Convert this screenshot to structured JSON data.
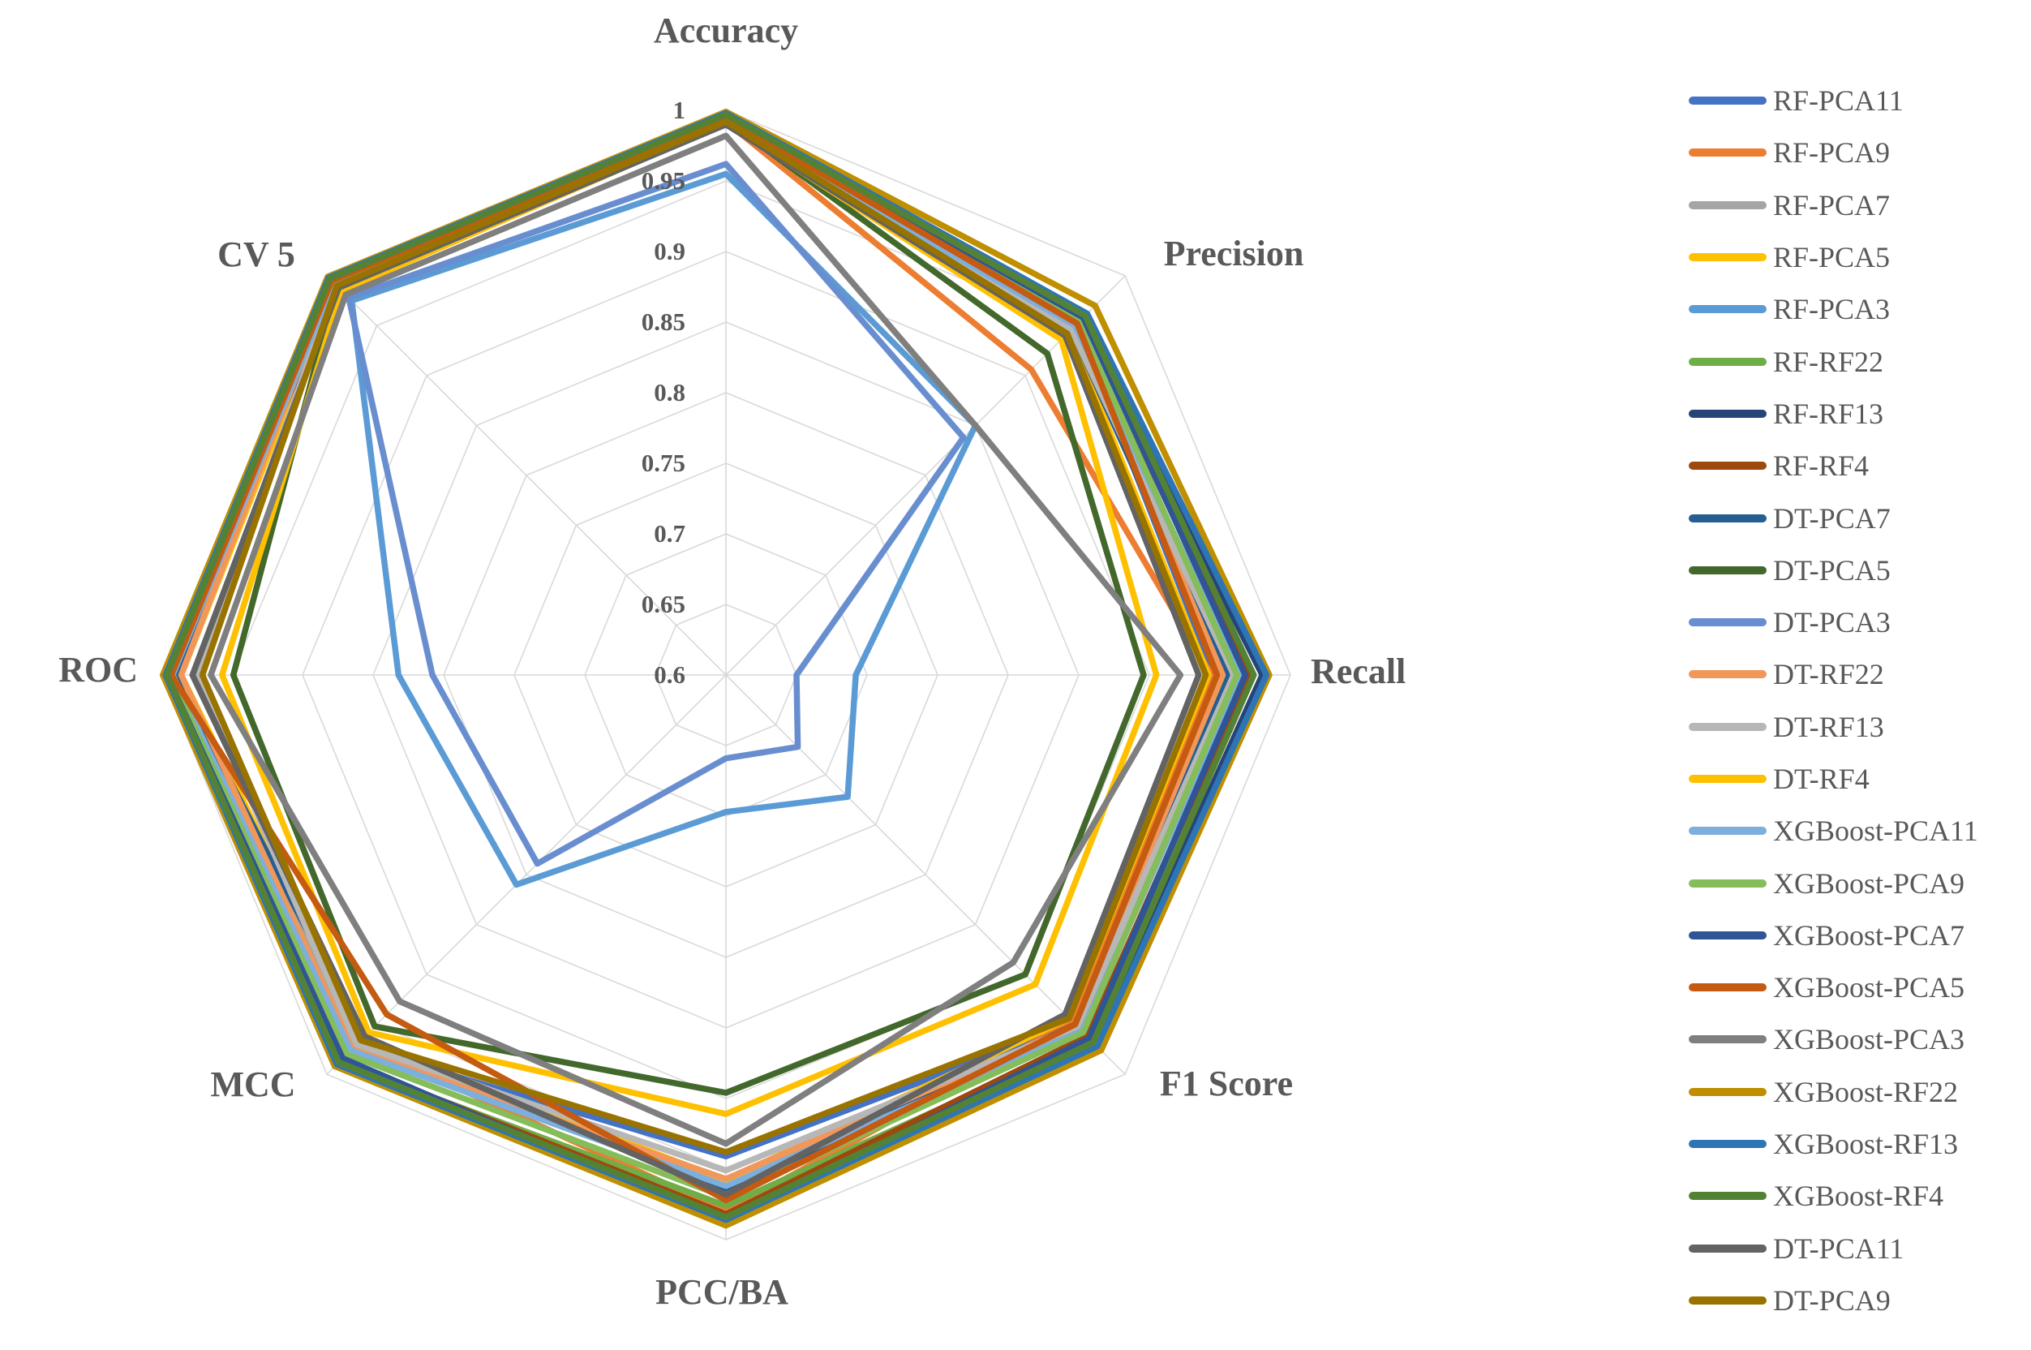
{
  "page": {
    "background_color": "#FFFFFF",
    "text_color": "#595959",
    "grid_color": "#D9D9D9"
  },
  "chart_data": {
    "type": "radar",
    "axes": [
      "Accuracy",
      "Precision",
      "Recall",
      "F1 Score",
      "PCC/BA",
      "MCC",
      "ROC",
      "CV 5"
    ],
    "radial_min": 0.6,
    "radial_max": 1.0,
    "ring_step": 0.05,
    "grid": true,
    "legend_position": "right",
    "tick_labels": [
      "1",
      "0.95",
      "0.9",
      "0.85",
      "0.8",
      "0.75",
      "0.7",
      "0.65",
      "0.6"
    ],
    "tick_values": [
      1.0,
      0.95,
      0.9,
      0.85,
      0.8,
      0.75,
      0.7,
      0.65,
      0.6
    ],
    "series": [
      {
        "name": "RF-PCA11",
        "color": "#4472C4",
        "values": [
          0.993,
          0.952,
          0.946,
          0.949,
          0.941,
          0.972,
          0.991,
          0.993
        ]
      },
      {
        "name": "RF-PCA9",
        "color": "#ED7D31",
        "values": [
          0.992,
          0.906,
          0.944,
          0.947,
          0.98,
          0.968,
          0.994,
          0.996
        ]
      },
      {
        "name": "RF-PCA7",
        "color": "#A5A5A5",
        "values": [
          0.991,
          0.948,
          0.958,
          0.953,
          0.96,
          0.97,
          0.988,
          0.992
        ]
      },
      {
        "name": "RF-PCA5",
        "color": "#FFC000",
        "values": [
          0.99,
          0.944,
          0.942,
          0.944,
          0.958,
          0.966,
          0.986,
          0.991
        ]
      },
      {
        "name": "RF-PCA3",
        "color": "#5B9BD5",
        "values": [
          0.955,
          0.85,
          0.692,
          0.722,
          0.697,
          0.81,
          0.832,
          0.975
        ]
      },
      {
        "name": "RF-RF22",
        "color": "#70AD47",
        "values": [
          0.998,
          0.96,
          0.972,
          0.966,
          0.976,
          0.988,
          0.998,
          0.999
        ]
      },
      {
        "name": "RF-RF13",
        "color": "#264478",
        "values": [
          0.997,
          0.958,
          0.98,
          0.97,
          0.985,
          0.99,
          0.997,
          0.998
        ]
      },
      {
        "name": "RF-RF4",
        "color": "#9E480E",
        "values": [
          0.996,
          0.956,
          0.97,
          0.962,
          0.982,
          0.986,
          0.996,
          0.997
        ]
      },
      {
        "name": "DT-PCA7",
        "color": "#255E91",
        "values": [
          0.99,
          0.946,
          0.955,
          0.95,
          0.966,
          0.964,
          0.99,
          0.992
        ]
      },
      {
        "name": "DT-PCA5",
        "color": "#43682B",
        "values": [
          0.993,
          0.922,
          0.896,
          0.9,
          0.896,
          0.952,
          0.949,
          0.99
        ]
      },
      {
        "name": "DT-PCA3",
        "color": "#698ED0",
        "values": [
          0.962,
          0.838,
          0.65,
          0.672,
          0.659,
          0.789,
          0.808,
          0.978
        ]
      },
      {
        "name": "DT-RF22",
        "color": "#F1975A",
        "values": [
          0.994,
          0.95,
          0.952,
          0.951,
          0.957,
          0.974,
          0.986,
          0.994
        ]
      },
      {
        "name": "DT-RF13",
        "color": "#B7B7B7",
        "values": [
          0.992,
          0.946,
          0.96,
          0.952,
          0.951,
          0.97,
          0.975,
          0.991
        ]
      },
      {
        "name": "DT-RF4",
        "color": "#FFC000",
        "values": [
          0.991,
          0.936,
          0.905,
          0.91,
          0.911,
          0.958,
          0.957,
          0.985
        ]
      },
      {
        "name": "XGBoost-PCA11",
        "color": "#7CAFDD",
        "values": [
          0.99,
          0.95,
          0.965,
          0.957,
          0.962,
          0.976,
          0.992,
          0.993
        ]
      },
      {
        "name": "XGBoost-PCA9",
        "color": "#84BD5A",
        "values": [
          0.994,
          0.954,
          0.962,
          0.958,
          0.97,
          0.98,
          0.994,
          0.995
        ]
      },
      {
        "name": "XGBoost-PCA7",
        "color": "#2F5597",
        "values": [
          0.996,
          0.958,
          0.968,
          0.964,
          0.988,
          0.984,
          0.996,
          0.997
        ]
      },
      {
        "name": "XGBoost-PCA5",
        "color": "#C55A11",
        "values": [
          0.995,
          0.952,
          0.948,
          0.95,
          0.972,
          0.94,
          0.993,
          0.995
        ]
      },
      {
        "name": "XGBoost-PCA3",
        "color": "#7F7F7F",
        "values": [
          0.982,
          0.85,
          0.922,
          0.888,
          0.932,
          0.927,
          0.965,
          0.981
        ]
      },
      {
        "name": "XGBoost-RF22",
        "color": "#BF8F00",
        "values": [
          0.999,
          0.97,
          0.985,
          0.976,
          0.99,
          0.992,
          0.999,
          0.999
        ]
      },
      {
        "name": "XGBoost-RF13",
        "color": "#2E75B6",
        "values": [
          0.998,
          0.962,
          0.983,
          0.972,
          0.986,
          0.99,
          0.997,
          0.998
        ]
      },
      {
        "name": "XGBoost-RF4",
        "color": "#548235",
        "values": [
          0.997,
          0.96,
          0.974,
          0.968,
          0.984,
          0.988,
          0.996,
          0.997
        ]
      },
      {
        "name": "DT-PCA11",
        "color": "#636363",
        "values": [
          0.99,
          0.94,
          0.935,
          0.94,
          0.968,
          0.962,
          0.978,
          0.988
        ]
      },
      {
        "name": "DT-PCA9",
        "color": "#997300",
        "values": [
          0.992,
          0.942,
          0.94,
          0.944,
          0.938,
          0.966,
          0.971,
          0.99
        ]
      }
    ]
  }
}
